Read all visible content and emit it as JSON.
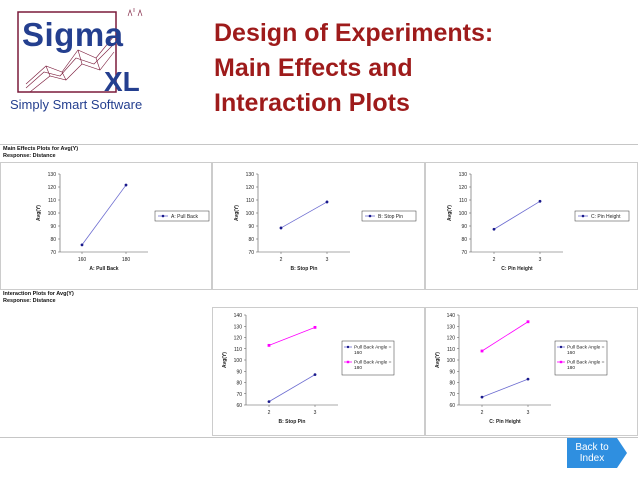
{
  "logo": {
    "brand": "Sigma",
    "brand_suffix": "XL",
    "tagline": "Simply Smart Software"
  },
  "slide_title": [
    "Design of Experiments:",
    "Main Effects and",
    "Interaction Plots"
  ],
  "main_effects_header": "Main Effects Plots for Avg(Y)",
  "main_effects_response": "Response: Distance",
  "interaction_header": "Interaction Plots for Avg(Y)",
  "interaction_response": "Response: Distance",
  "back_button": {
    "line1": "Back to",
    "line2": "Index"
  },
  "colors": {
    "series_blue": "#1a1a8c",
    "series_magenta": "#ff00ff",
    "title_red": "#9e1b1b",
    "button_blue": "#2f8fe0"
  },
  "chart_data": [
    {
      "type": "line",
      "title": "",
      "xlabel": "A: Pull Back",
      "ylabel": "Avg(Y)",
      "ylim": [
        70,
        130
      ],
      "yticks": [
        70,
        80,
        90,
        100,
        110,
        120,
        130
      ],
      "categories": [
        "160",
        "180"
      ],
      "series": [
        {
          "name": "A: Pull Back",
          "values": [
            75.5,
            121.5
          ]
        }
      ]
    },
    {
      "type": "line",
      "title": "",
      "xlabel": "B: Stop Pin",
      "ylabel": "Avg(Y)",
      "ylim": [
        70,
        130
      ],
      "yticks": [
        70,
        80,
        90,
        100,
        110,
        120,
        130
      ],
      "categories": [
        "2",
        "3"
      ],
      "series": [
        {
          "name": "B: Stop Pin",
          "values": [
            88.5,
            108.5
          ]
        }
      ]
    },
    {
      "type": "line",
      "title": "",
      "xlabel": "C: Pin Height",
      "ylabel": "Avg(Y)",
      "ylim": [
        70,
        130
      ],
      "yticks": [
        70,
        80,
        90,
        100,
        110,
        120,
        130
      ],
      "categories": [
        "2",
        "3"
      ],
      "series": [
        {
          "name": "C: Pin Height",
          "values": [
            87.5,
            109
          ]
        }
      ]
    },
    {
      "type": "line",
      "title": "",
      "xlabel": "B: Stop Pin",
      "ylabel": "Avg(Y)",
      "ylim": [
        60,
        140
      ],
      "yticks": [
        60,
        70,
        80,
        90,
        100,
        110,
        120,
        130,
        140
      ],
      "categories": [
        "2",
        "3"
      ],
      "series": [
        {
          "name": "Pull Back Angle = 160",
          "values": [
            63,
            87
          ]
        },
        {
          "name": "Pull Back Angle = 180",
          "values": [
            113,
            129
          ]
        }
      ]
    },
    {
      "type": "line",
      "title": "",
      "xlabel": "C: Pin Height",
      "ylabel": "Avg(Y)",
      "ylim": [
        60,
        140
      ],
      "yticks": [
        60,
        70,
        80,
        90,
        100,
        110,
        120,
        130,
        140
      ],
      "categories": [
        "2",
        "3"
      ],
      "series": [
        {
          "name": "Pull Back Angle = 160",
          "values": [
            67,
            83
          ]
        },
        {
          "name": "Pull Back Angle = 180",
          "values": [
            108,
            134
          ]
        }
      ]
    }
  ]
}
